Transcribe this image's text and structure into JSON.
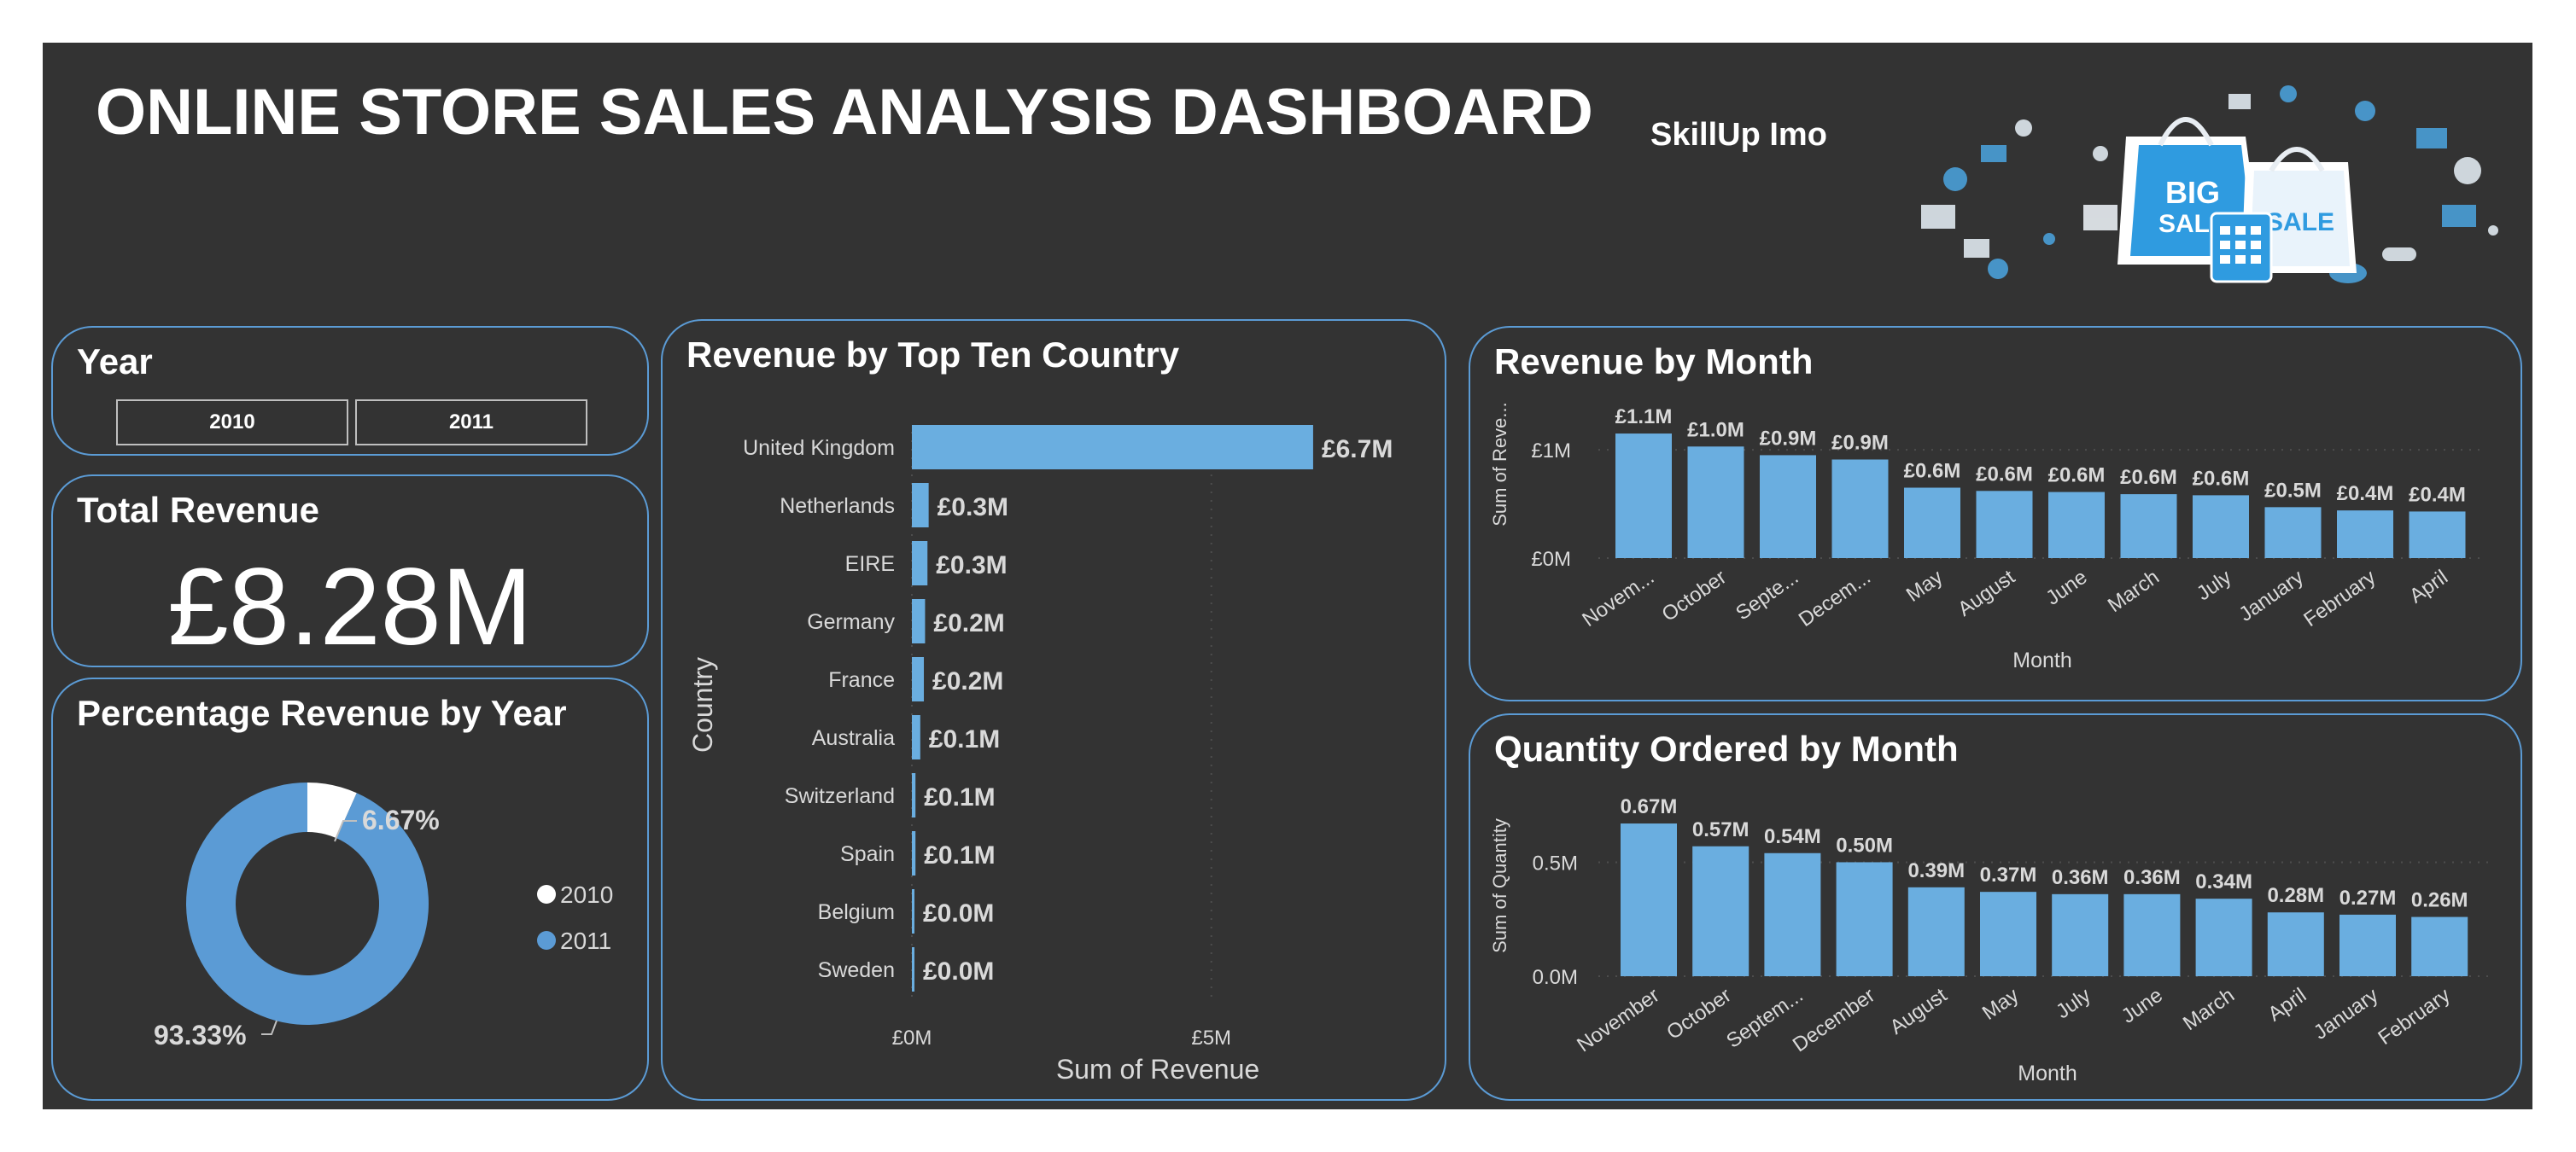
{
  "header": {
    "title": "ONLINE STORE SALES ANALYSIS DASHBOARD",
    "subtitle": "SkillUp Imo",
    "banner_text_1": "BIG",
    "banner_text_2": "SALE",
    "banner_text_3": "SALE"
  },
  "year_slicer": {
    "title": "Year",
    "options": [
      "2010",
      "2011"
    ]
  },
  "total_revenue": {
    "title": "Total Revenue",
    "value": "£8.28M"
  },
  "colors": {
    "background": "#333333",
    "accent": "#5b9bd5",
    "bar": "#6aaee0",
    "white": "#ffffff"
  },
  "chart_data": [
    {
      "id": "pct-revenue-year",
      "type": "pie",
      "title": "Percentage Revenue by Year",
      "slices": [
        {
          "label": "2010",
          "value": 6.67,
          "display": "6.67%",
          "color": "#ffffff"
        },
        {
          "label": "2011",
          "value": 93.33,
          "display": "93.33%",
          "color": "#5b9bd5"
        }
      ],
      "legend": "right"
    },
    {
      "id": "revenue-country",
      "type": "bar",
      "orientation": "horizontal",
      "title": "Revenue by Top Ten Country",
      "xlabel": "Sum of Revenue",
      "ylabel": "Country",
      "categories": [
        "United Kingdom",
        "Netherlands",
        "EIRE",
        "Germany",
        "France",
        "Australia",
        "Switzerland",
        "Spain",
        "Belgium",
        "Sweden"
      ],
      "values": [
        6.7,
        0.28,
        0.26,
        0.22,
        0.2,
        0.14,
        0.06,
        0.06,
        0.04,
        0.04
      ],
      "labels": [
        "£6.7M",
        "£0.3M",
        "£0.3M",
        "£0.2M",
        "£0.2M",
        "£0.1M",
        "£0.1M",
        "£0.1M",
        "£0.0M",
        "£0.0M"
      ],
      "xticks": [
        0,
        5
      ],
      "xtick_labels": [
        "£0M",
        "£5M"
      ],
      "xlim": [
        0,
        7.1
      ]
    },
    {
      "id": "revenue-month",
      "type": "bar",
      "title": "Revenue by Month",
      "xlabel": "Month",
      "ylabel": "Sum of Reve...",
      "categories": [
        "Novem...",
        "October",
        "Septe...",
        "Decem...",
        "May",
        "August",
        "June",
        "March",
        "July",
        "January",
        "February",
        "April"
      ],
      "values": [
        1.15,
        1.03,
        0.95,
        0.91,
        0.65,
        0.62,
        0.61,
        0.59,
        0.58,
        0.47,
        0.44,
        0.43
      ],
      "labels": [
        "£1.1M",
        "£1.0M",
        "£0.9M",
        "£0.9M",
        "£0.6M",
        "£0.6M",
        "£0.6M",
        "£0.6M",
        "£0.6M",
        "£0.5M",
        "£0.4M",
        "£0.4M"
      ],
      "yticks": [
        0,
        1
      ],
      "ytick_labels": [
        "£0M",
        "£1M"
      ],
      "ylim": [
        0,
        1.3
      ]
    },
    {
      "id": "quantity-month",
      "type": "bar",
      "title": "Quantity Ordered by Month",
      "xlabel": "Month",
      "ylabel": "Sum of Quantity",
      "categories": [
        "November",
        "October",
        "Septem...",
        "December",
        "August",
        "May",
        "July",
        "June",
        "March",
        "April",
        "January",
        "February"
      ],
      "values": [
        0.67,
        0.57,
        0.54,
        0.5,
        0.39,
        0.37,
        0.36,
        0.36,
        0.34,
        0.28,
        0.27,
        0.26
      ],
      "labels": [
        "0.67M",
        "0.57M",
        "0.54M",
        "0.50M",
        "0.39M",
        "0.37M",
        "0.36M",
        "0.36M",
        "0.34M",
        "0.28M",
        "0.27M",
        "0.26M"
      ],
      "yticks": [
        0,
        0.5
      ],
      "ytick_labels": [
        "0.0M",
        "0.5M"
      ],
      "ylim": [
        0,
        0.76
      ]
    }
  ]
}
